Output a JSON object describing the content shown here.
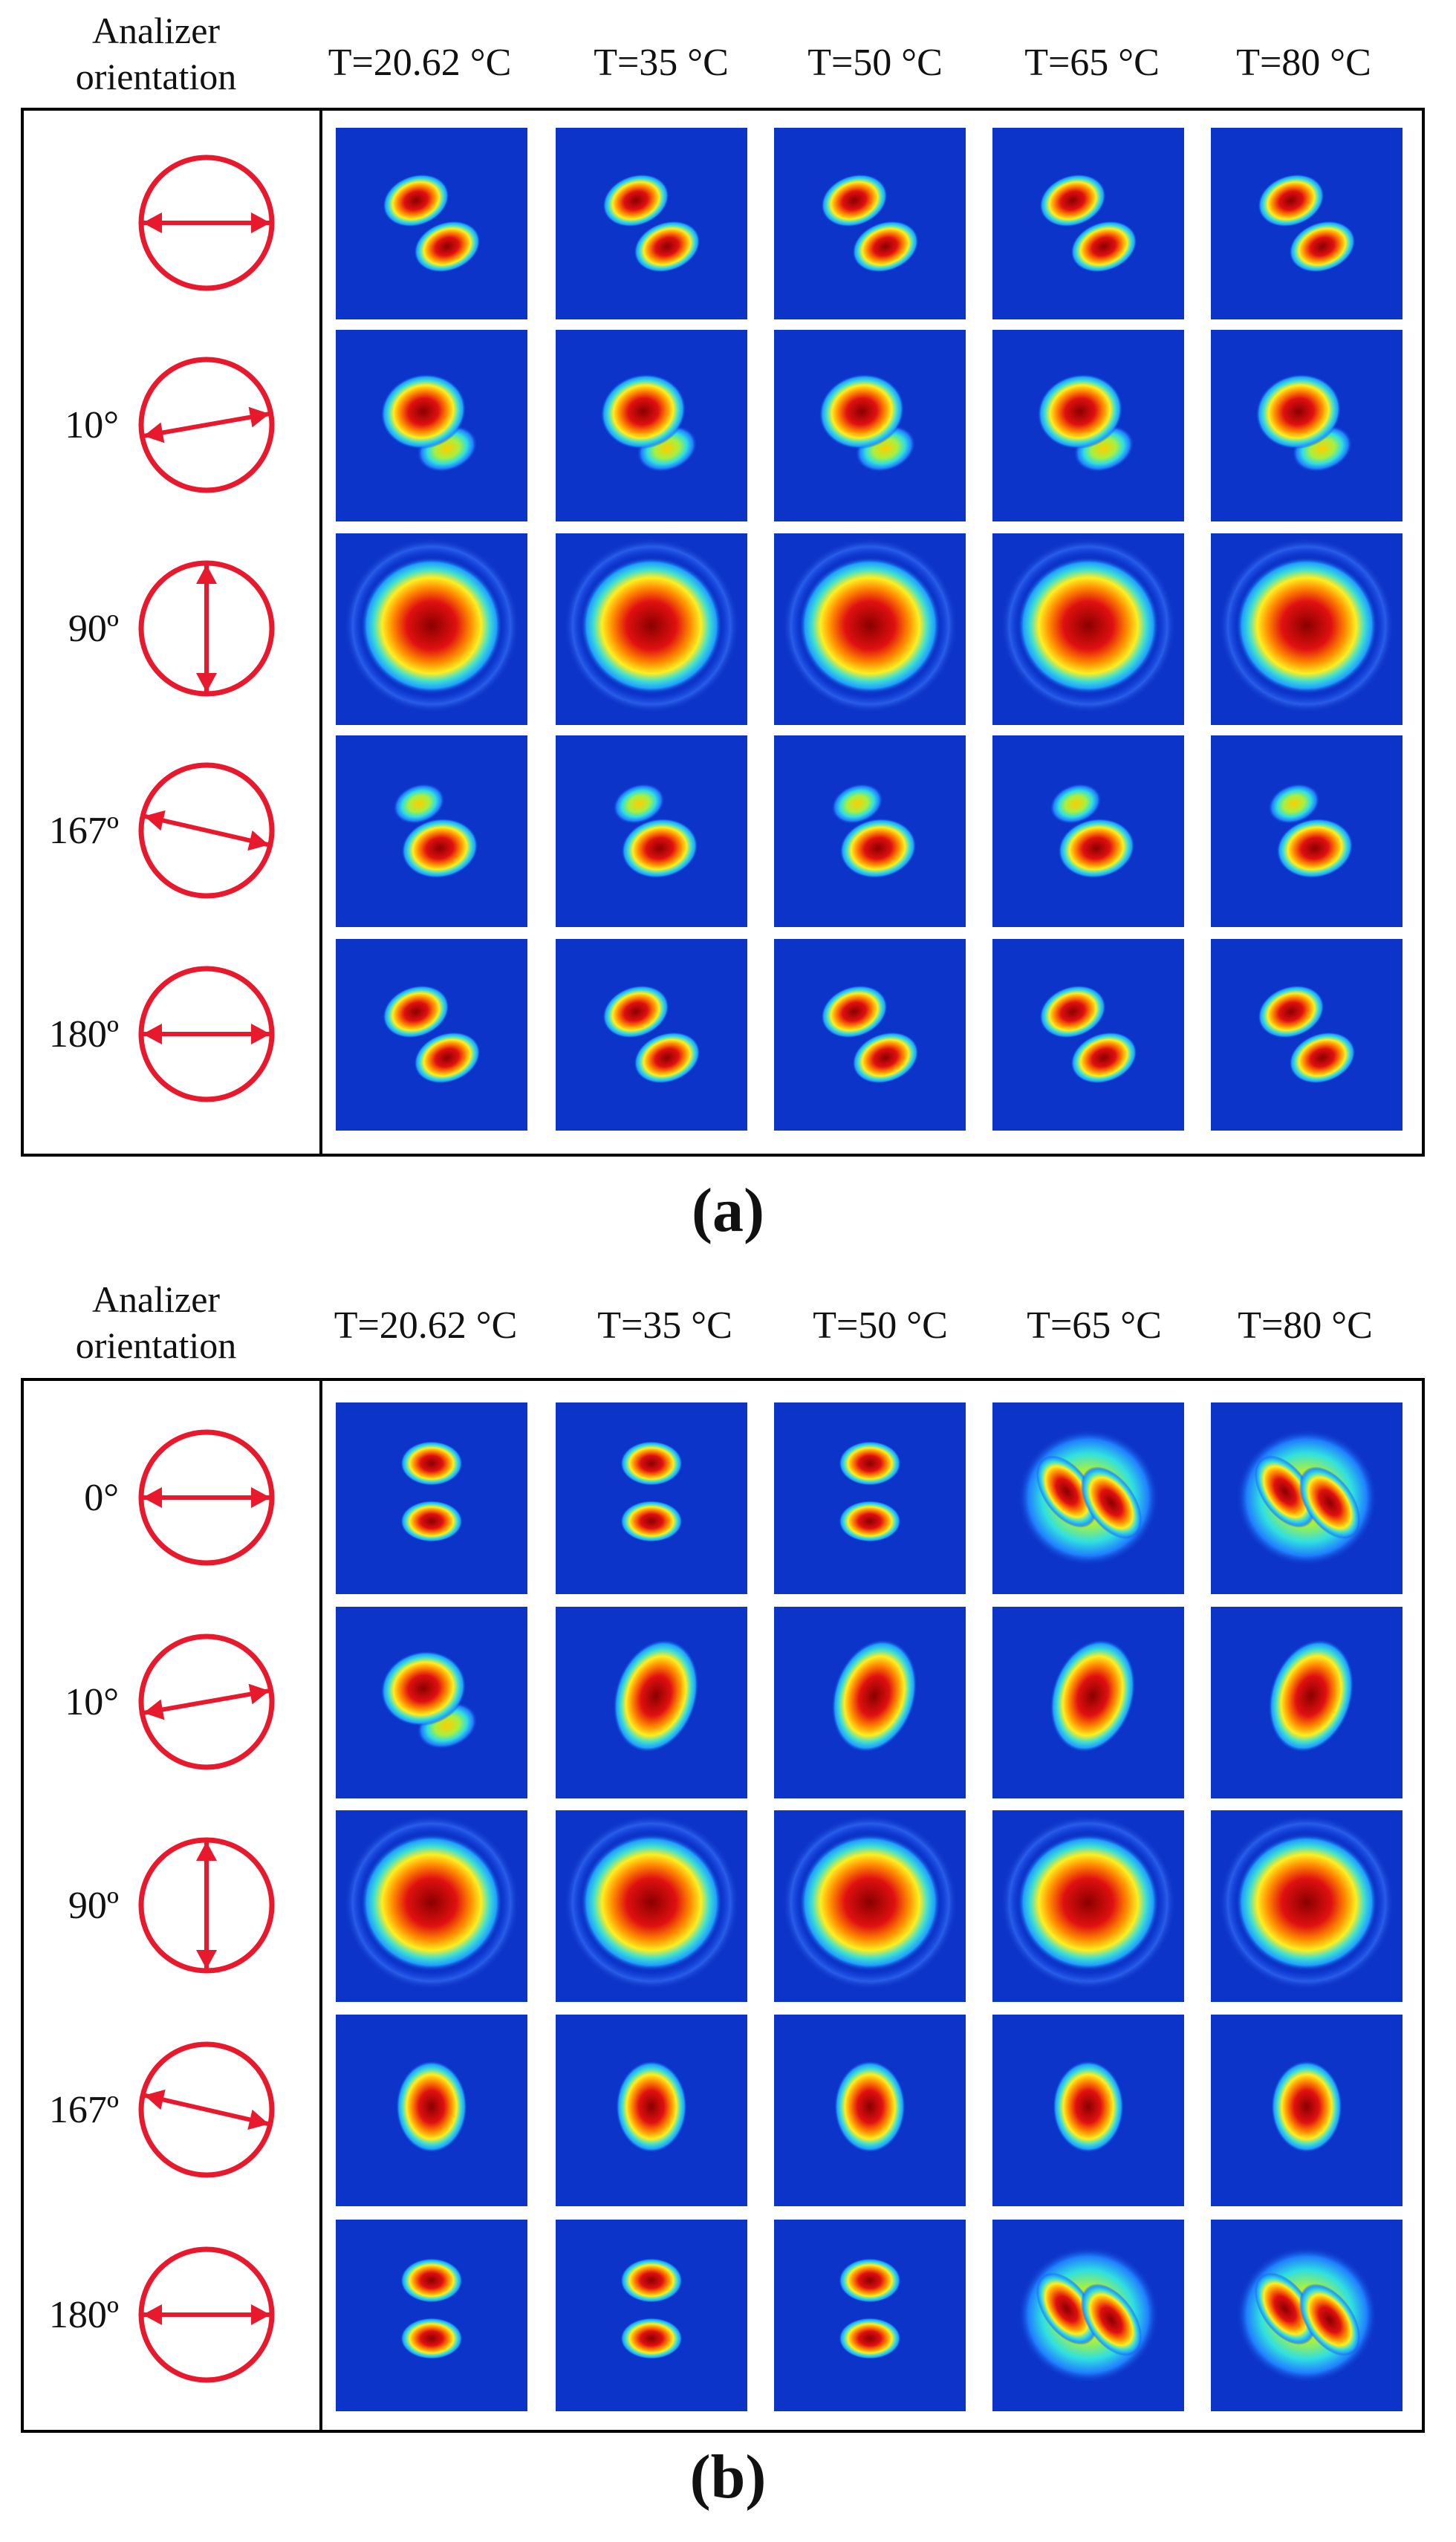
{
  "panels": [
    {
      "id": "a",
      "caption": "(a)",
      "header": {
        "analyzer_label": "Analizer\norientation",
        "temperatures": [
          "T=20.62 °C",
          "T=35 °C",
          "T=50 °C",
          "T=65 °C",
          "T=80 °C"
        ]
      },
      "rows": [
        {
          "label": "",
          "angle_deg": 0
        },
        {
          "label": "10°",
          "angle_deg": 10
        },
        {
          "label": "90º",
          "angle_deg": 90
        },
        {
          "label": "167º",
          "angle_deg": 167
        },
        {
          "label": "180º",
          "angle_deg": 180
        }
      ],
      "patterns": [
        [
          "two-lobe",
          "two-lobe",
          "two-lobe",
          "two-lobe",
          "two-lobe"
        ],
        [
          "lobe-upper",
          "lobe-upper",
          "lobe-upper",
          "lobe-upper",
          "lobe-upper"
        ],
        [
          "round",
          "round",
          "round",
          "round",
          "round"
        ],
        [
          "lobe-lower",
          "lobe-lower",
          "lobe-lower",
          "lobe-lower",
          "lobe-lower"
        ],
        [
          "two-lobe",
          "two-lobe",
          "two-lobe",
          "two-lobe",
          "two-lobe"
        ]
      ]
    },
    {
      "id": "b",
      "caption": "(b)",
      "header": {
        "analyzer_label": "Analizer\norientation",
        "temperatures": [
          "T=20.62 °C",
          "T=35 °C",
          "T=50 °C",
          "T=65 °C",
          "T=80 °C"
        ]
      },
      "rows": [
        {
          "label": "0°",
          "angle_deg": 0
        },
        {
          "label": "10°",
          "angle_deg": 10
        },
        {
          "label": "90º",
          "angle_deg": 90
        },
        {
          "label": "167º",
          "angle_deg": 167
        },
        {
          "label": "180º",
          "angle_deg": 180
        }
      ],
      "patterns": [
        [
          "two-lobe-vertical",
          "two-lobe-vertical",
          "two-lobe-vertical",
          "ring-split",
          "ring-split"
        ],
        [
          "lobe-upper",
          "kidney",
          "kidney",
          "kidney",
          "kidney"
        ],
        [
          "round",
          "round",
          "round",
          "round",
          "round"
        ],
        [
          "oval",
          "oval",
          "oval",
          "oval",
          "oval"
        ],
        [
          "two-lobe-vertical",
          "two-lobe-vertical",
          "two-lobe-vertical",
          "ring-split",
          "ring-split"
        ]
      ]
    }
  ],
  "colors": {
    "arrow": "#e8192c",
    "beam_bg": "#0c34c8",
    "frame": "#000000"
  }
}
